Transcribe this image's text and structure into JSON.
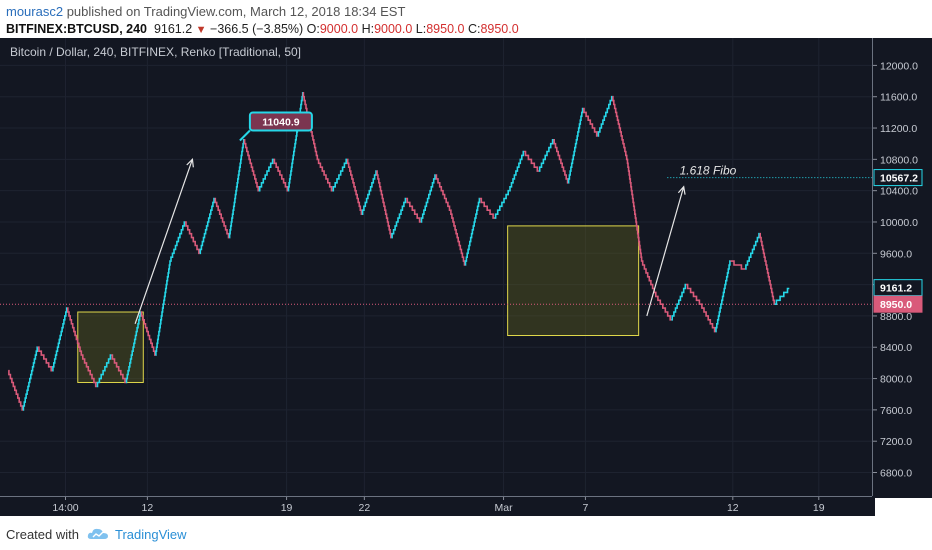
{
  "header": {
    "author": "mourasc2",
    "published_text": "published on TradingView.com, March 12, 2018 18:34 EST",
    "symbol": "BITFINEX:BTCUSD, 240",
    "last_price": "9161.2",
    "change": "−366.5 (−3.85%)",
    "o_label": "O:",
    "o_value": "9000.0",
    "h_label": "H:",
    "h_value": "9000.0",
    "l_label": "L:",
    "l_value": "8950.0",
    "c_label": "C:",
    "c_value": "8950.0"
  },
  "footer": {
    "created_with": "Created with",
    "brand": "TradingView"
  },
  "colors": {
    "background": "#131722",
    "up": "#26d7e8",
    "down": "#d95a7a",
    "box_fill": "#6b6b1e",
    "box_stroke": "#e0d84a"
  },
  "chart_data": {
    "type": "line",
    "subtype": "renko",
    "title": "Bitcoin / Dollar, 240, BITFINEX, Renko [Traditional, 50]",
    "y_tick_labels": [
      "12000.0",
      "11600.0",
      "11200.0",
      "10800.0",
      "10400.0",
      "10000.0",
      "9600.0",
      "9200.0",
      "8800.0",
      "8400.0",
      "8000.0",
      "7600.0",
      "7200.0",
      "6800.0"
    ],
    "ylim": [
      6500,
      12350
    ],
    "x_tick_labels": [
      "14:00",
      "12",
      "19",
      "22",
      "Mar",
      "7",
      "12",
      "19"
    ],
    "x_tick_index": [
      14,
      34,
      68,
      87,
      121,
      141,
      177,
      198
    ],
    "xlim": [
      -2,
      211
    ],
    "grid": true,
    "series": [
      {
        "values": [
          8100,
          7600,
          8400,
          8100,
          8900,
          8300,
          7900,
          8300,
          7950,
          8850,
          8300,
          9500,
          10000,
          9600,
          10300,
          9800,
          11050,
          10400,
          10800,
          10400,
          11650,
          10800,
          10400,
          10800,
          10100,
          10650,
          9800,
          10300,
          10000,
          10600,
          10150,
          9450,
          10300,
          10050,
          10400,
          10900,
          10650,
          11050,
          10500,
          11450,
          11100,
          11600,
          10800,
          9500,
          9050,
          8750,
          9200,
          8950,
          8600,
          9500,
          9400,
          9850,
          8950,
          9150
        ]
      }
    ],
    "current_price_label": "9161.2",
    "close_price_label": "8950.0",
    "close_line_value": 8950,
    "fibo_label": "1.618 Fibo",
    "fibo_value_label": "10567.2",
    "fibo_value": 10567.2,
    "callout_label": "11040.9",
    "callout_value": 11040.9,
    "boxes": [
      {
        "x0": 17,
        "x1": 33,
        "y0": 7950,
        "y1": 8850
      },
      {
        "x0": 122,
        "x1": 154,
        "y0": 8550,
        "y1": 9950
      }
    ],
    "arrows": [
      {
        "x0": 31,
        "y0": 8700,
        "x1": 45,
        "y1": 10800
      },
      {
        "x0": 156,
        "y0": 8800,
        "x1": 165,
        "y1": 10450
      }
    ]
  }
}
